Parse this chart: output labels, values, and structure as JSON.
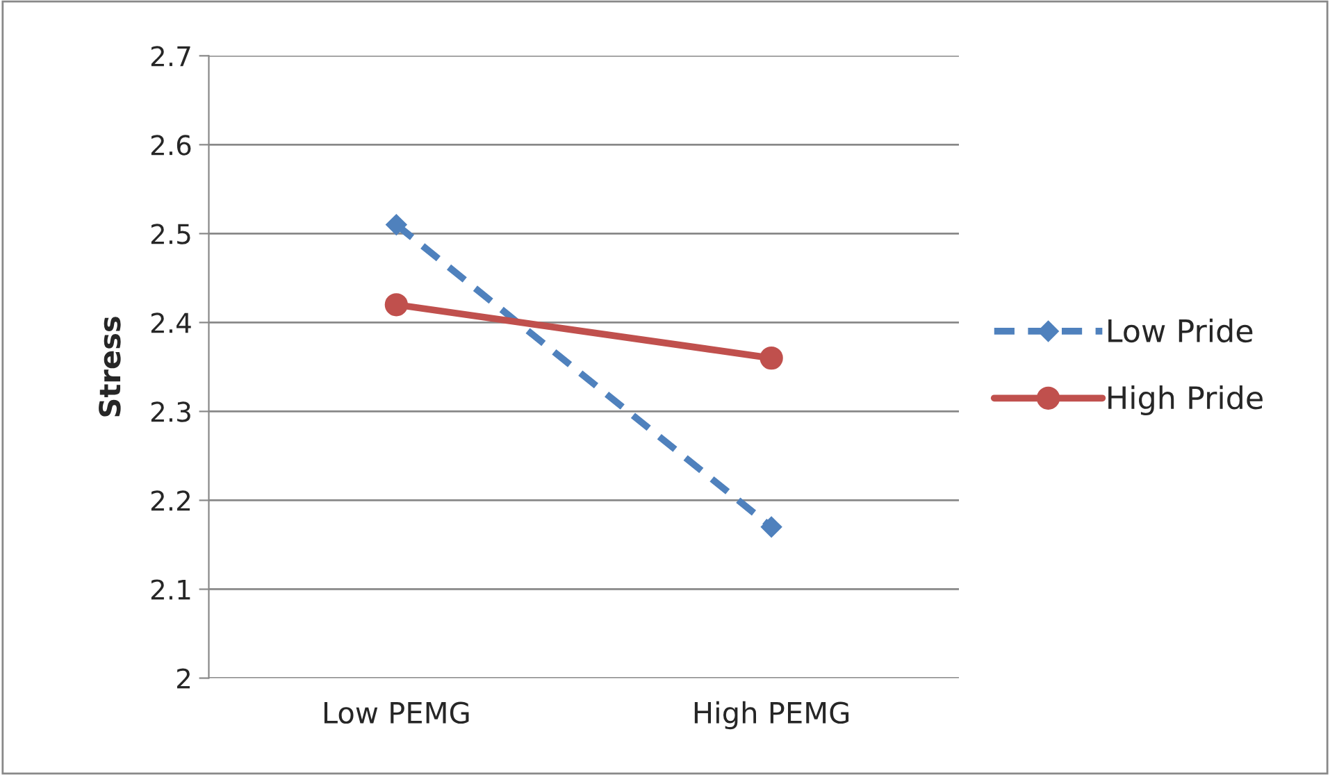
{
  "chart_data": {
    "type": "line",
    "ylabel": "Stress",
    "categories": [
      "Low PEMG",
      "High PEMG"
    ],
    "series": [
      {
        "name": "Low Pride",
        "color": "#4f81bd",
        "values": [
          2.51,
          2.17
        ],
        "marker": "diamond",
        "line_style": "dashed"
      },
      {
        "name": "High Pride",
        "color": "#c0504d",
        "values": [
          2.42,
          2.36
        ],
        "marker": "circle",
        "line_style": "solid"
      }
    ],
    "ylim": [
      2,
      2.7
    ],
    "yticks": [
      {
        "value": 2,
        "label": "2"
      },
      2.1,
      2.2,
      2.3,
      2.4,
      2.5,
      2.6,
      2.7
    ],
    "grid": "y",
    "legend": "right"
  }
}
